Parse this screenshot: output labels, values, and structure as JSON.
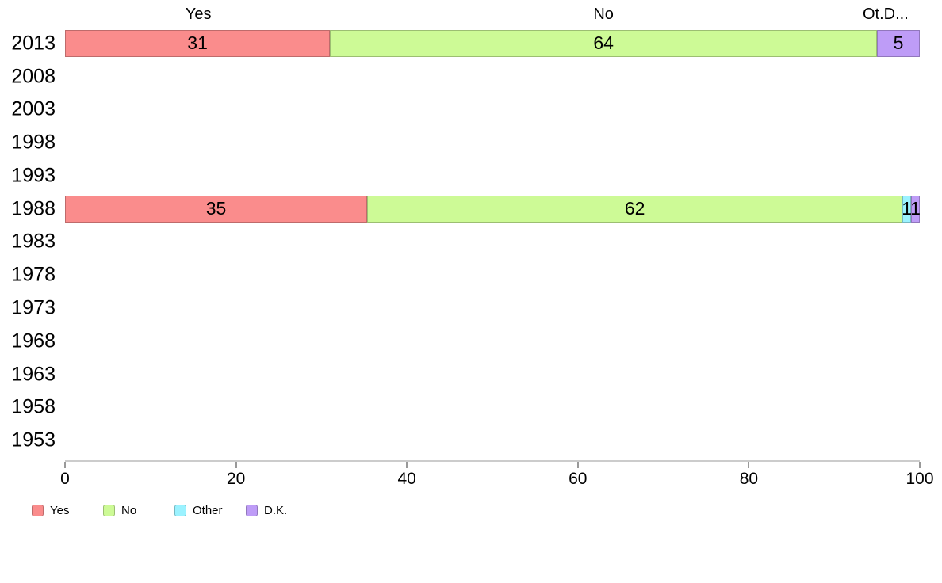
{
  "page": {
    "background": "#ffffff"
  },
  "chart_data": {
    "type": "bar",
    "orientation": "horizontal",
    "stacked": true,
    "title": "",
    "xlabel": "",
    "ylabel": "",
    "categories": [
      "2013",
      "2008",
      "2003",
      "1998",
      "1993",
      "1988",
      "1983",
      "1978",
      "1973",
      "1968",
      "1963",
      "1958",
      "1953"
    ],
    "series": [
      {
        "name": "Yes",
        "color": "#FA8C8C",
        "border_color": "#BE6B6B",
        "values": [
          31,
          null,
          null,
          null,
          null,
          35,
          null,
          null,
          null,
          null,
          null,
          null,
          null
        ]
      },
      {
        "name": "No",
        "color": "#CDFA96",
        "border_color": "#9CBE72",
        "values": [
          64,
          null,
          null,
          null,
          null,
          62,
          null,
          null,
          null,
          null,
          null,
          null,
          null
        ]
      },
      {
        "name": "Other",
        "color": "#9BF2FF",
        "border_color": "#76B8C2",
        "values": [
          null,
          null,
          null,
          null,
          null,
          1,
          null,
          null,
          null,
          null,
          null,
          null,
          null
        ]
      },
      {
        "name": "D.K.",
        "color": "#BE9CF7",
        "border_color": "#9177BC",
        "values": [
          5,
          null,
          null,
          null,
          null,
          1,
          null,
          null,
          null,
          null,
          null,
          null,
          null
        ]
      }
    ],
    "xlim": [
      0,
      100
    ],
    "x_ticks": [
      "0",
      "20",
      "40",
      "60",
      "80",
      "100"
    ],
    "grid": false,
    "legend_position": "bottom-left",
    "column_headers": [
      {
        "text": "Yes",
        "x_pct": 15.6
      },
      {
        "text": "No",
        "x_pct": 63.0
      },
      {
        "text": "Ot.D...",
        "x_pct": 96.0
      }
    ]
  }
}
